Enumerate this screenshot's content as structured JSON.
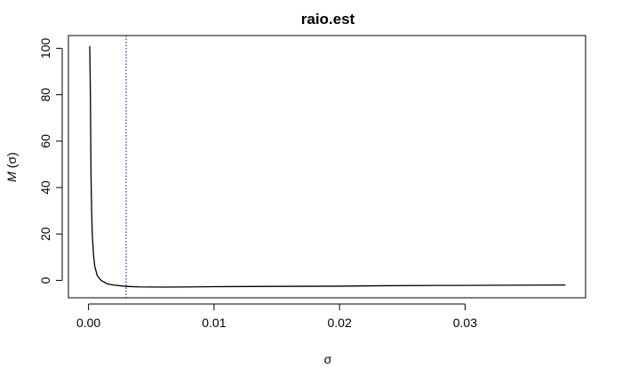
{
  "chart_data": {
    "type": "line",
    "title": "raio.est",
    "xlabel": "σ",
    "ylabel_italic": "M",
    "ylabel_rest": "(σ)",
    "xlim": [
      -0.0016,
      0.0396
    ],
    "ylim": [
      -7.5,
      105.5
    ],
    "x_ticks": [
      0.0,
      0.01,
      0.02,
      0.03
    ],
    "x_tick_labels": [
      "0.00",
      "0.01",
      "0.02",
      "0.03"
    ],
    "y_ticks": [
      0,
      20,
      40,
      60,
      80,
      100
    ],
    "y_tick_labels": [
      "0",
      "20",
      "40",
      "60",
      "80",
      "100"
    ],
    "vline": {
      "x": 0.003,
      "color": "#00008b",
      "style": "dotted"
    },
    "series": [
      {
        "name": "M(σ)",
        "color": "#000000",
        "x": [
          0.0001,
          0.00015,
          0.0002,
          0.00025,
          0.0003,
          0.0004,
          0.0005,
          0.0007,
          0.001,
          0.0015,
          0.002,
          0.0025,
          0.003,
          0.004,
          0.006,
          0.0085,
          0.01,
          0.015,
          0.02,
          0.0235,
          0.028,
          0.033,
          0.038
        ],
        "values": [
          101,
          80,
          45,
          30,
          20,
          11,
          6,
          2,
          0,
          -1.5,
          -2,
          -2.3,
          -2.6,
          -2.8,
          -2.9,
          -2.8,
          -2.7,
          -2.6,
          -2.5,
          -2.3,
          -2.2,
          -2.1,
          -2.0
        ]
      }
    ]
  }
}
